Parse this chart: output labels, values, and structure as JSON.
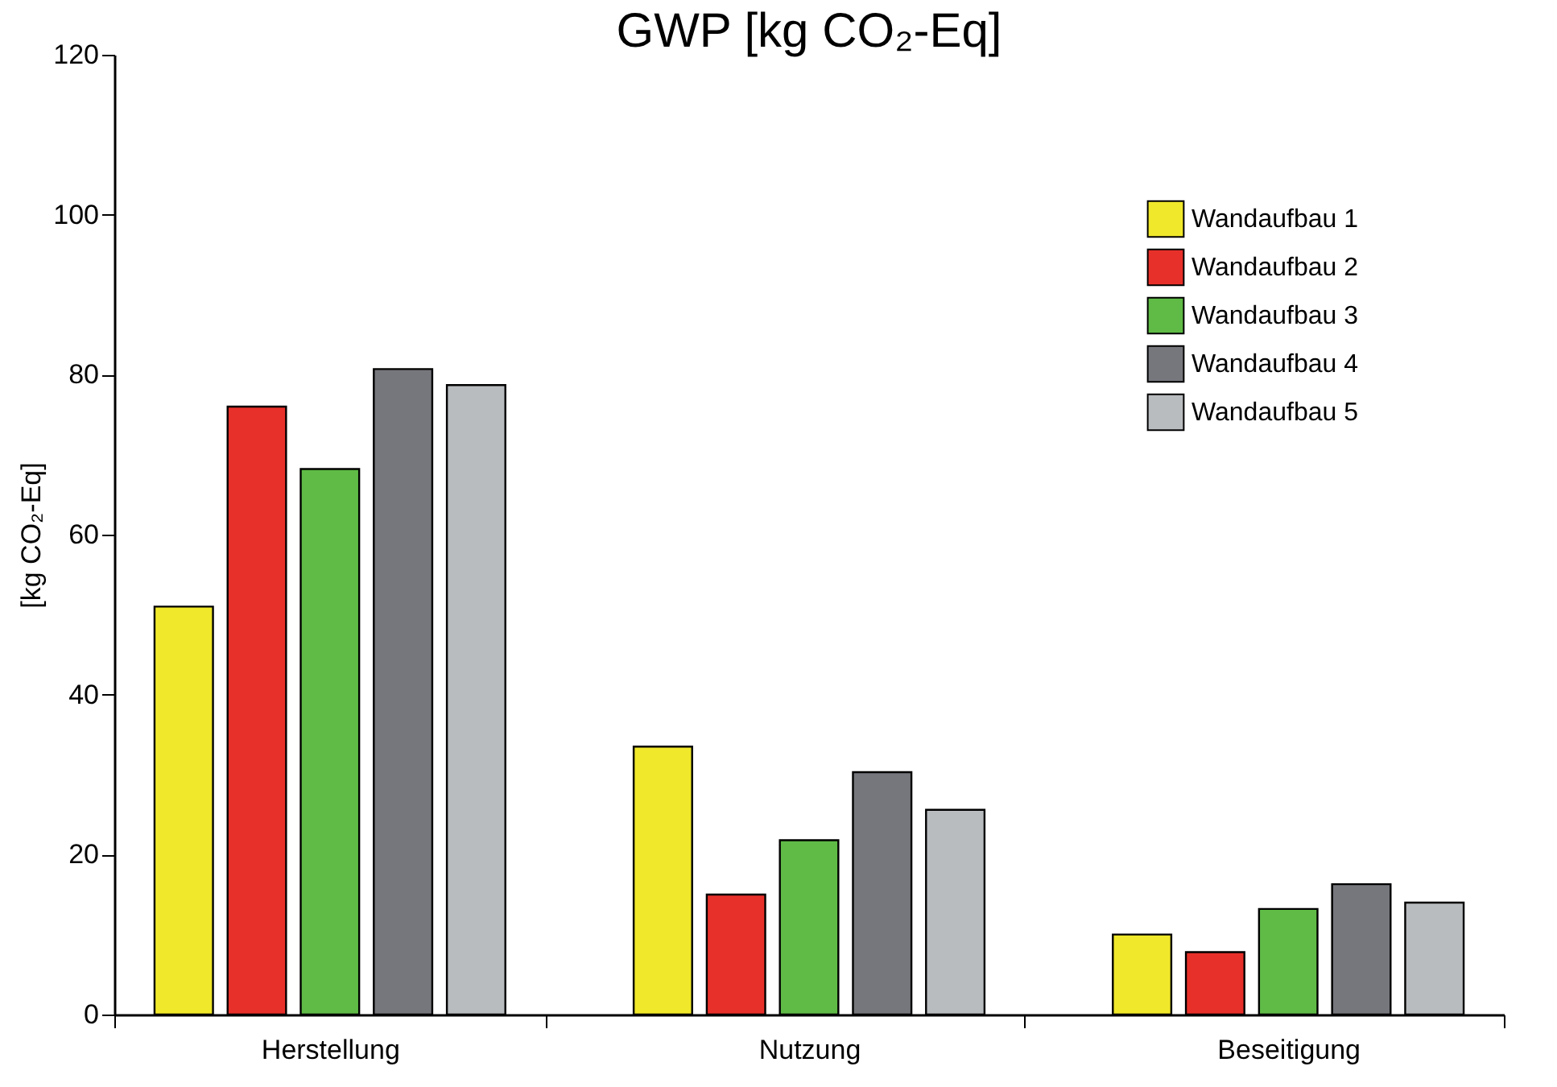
{
  "chart_data": {
    "type": "bar",
    "title": "GWP [kg CO₂-Eq]",
    "ylabel": "[kg CO₂-Eq]",
    "categories": [
      "Herstellung",
      "Nutzung",
      "Beseitigung"
    ],
    "series": [
      {
        "name": "Wandaufbau 1",
        "color": "#f0e82a",
        "values": [
          51,
          33.5,
          10
        ]
      },
      {
        "name": "Wandaufbau 2",
        "color": "#e8302a",
        "values": [
          76,
          15,
          7.8
        ]
      },
      {
        "name": "Wandaufbau 3",
        "color": "#5fbb46",
        "values": [
          68.2,
          21.8,
          13.2
        ]
      },
      {
        "name": "Wandaufbau 4",
        "color": "#76777c",
        "values": [
          80.7,
          30.3,
          16.3
        ]
      },
      {
        "name": "Wandaufbau 5",
        "color": "#b9bcbf",
        "values": [
          78.7,
          25.6,
          14
        ]
      }
    ],
    "ylim": [
      0,
      120
    ],
    "yticks": [
      0,
      20,
      40,
      60,
      80,
      100,
      120
    ],
    "grid": false,
    "legend": "top right"
  }
}
